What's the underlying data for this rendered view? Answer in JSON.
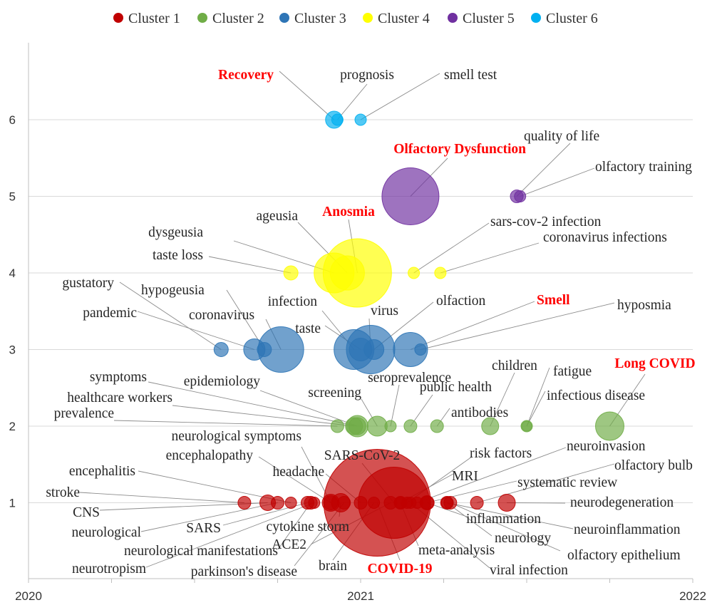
{
  "chart_data": {
    "type": "bubble",
    "title": "",
    "xlabel": "",
    "ylabel": "",
    "xlim": [
      2020,
      2022
    ],
    "ylim": [
      0,
      7
    ],
    "x_ticks": [
      "2020",
      "2021",
      "2022"
    ],
    "y_ticks": [
      "1",
      "2",
      "3",
      "4",
      "5",
      "6"
    ],
    "grid": "horizontal",
    "legend_position": "top",
    "series": [
      {
        "name": "Cluster 1",
        "color": "#c00000",
        "y": 1
      },
      {
        "name": "Cluster 2",
        "color": "#70ad47",
        "y": 2
      },
      {
        "name": "Cluster 3",
        "color": "#2e75b6",
        "y": 3
      },
      {
        "name": "Cluster 4",
        "color": "#ffff00",
        "y": 4
      },
      {
        "name": "Cluster 5",
        "color": "#7030a0",
        "y": 5
      },
      {
        "name": "Cluster 6",
        "color": "#00b0f0",
        "y": 6
      }
    ],
    "bubbles": [
      {
        "label": "Recovery",
        "cluster": 6,
        "x": 2020.92,
        "size": 12,
        "highlight": true
      },
      {
        "label": "prognosis",
        "cluster": 6,
        "x": 2020.93,
        "size": 8
      },
      {
        "label": "smell test",
        "cluster": 6,
        "x": 2021.0,
        "size": 8
      },
      {
        "label": "Olfactory Dysfunction",
        "cluster": 5,
        "x": 2021.15,
        "size": 40,
        "highlight": true
      },
      {
        "label": "quality of life",
        "cluster": 5,
        "x": 2021.47,
        "size": 9
      },
      {
        "label": "olfactory training",
        "cluster": 5,
        "x": 2021.48,
        "size": 8
      },
      {
        "label": "taste loss",
        "cluster": 4,
        "x": 2020.79,
        "size": 10
      },
      {
        "label": "dysgeusia",
        "cluster": 4,
        "x": 2020.92,
        "size": 28
      },
      {
        "label": "ageusia",
        "cluster": 4,
        "x": 2020.96,
        "size": 24
      },
      {
        "label": "Anosmia",
        "cluster": 4,
        "x": 2020.99,
        "size": 48,
        "highlight": true
      },
      {
        "label": "sars-cov-2 infection",
        "cluster": 4,
        "x": 2021.16,
        "size": 8
      },
      {
        "label": "coronavirus infections",
        "cluster": 4,
        "x": 2021.24,
        "size": 8
      },
      {
        "label": "gustatory",
        "cluster": 3,
        "x": 2020.58,
        "size": 10
      },
      {
        "label": "pandemic",
        "cluster": 3,
        "x": 2020.68,
        "size": 15
      },
      {
        "label": "hypogeusia",
        "cluster": 3,
        "x": 2020.71,
        "size": 10
      },
      {
        "label": "coronavirus",
        "cluster": 3,
        "x": 2020.76,
        "size": 32
      },
      {
        "label": "infection",
        "cluster": 3,
        "x": 2020.98,
        "size": 28
      },
      {
        "label": "taste",
        "cluster": 3,
        "x": 2021.0,
        "size": 16
      },
      {
        "label": "virus",
        "cluster": 3,
        "x": 2021.03,
        "size": 34
      },
      {
        "label": "olfaction",
        "cluster": 3,
        "x": 2021.04,
        "size": 14
      },
      {
        "label": "Smell",
        "cluster": 3,
        "x": 2021.15,
        "size": 24,
        "highlight": true
      },
      {
        "label": "hyposmia",
        "cluster": 3,
        "x": 2021.18,
        "size": 8
      },
      {
        "label": "prevalence",
        "cluster": 2,
        "x": 2020.93,
        "size": 9
      },
      {
        "label": "healthcare workers",
        "cluster": 2,
        "x": 2020.98,
        "size": 12
      },
      {
        "label": "symptoms",
        "cluster": 2,
        "x": 2020.99,
        "size": 15
      },
      {
        "label": "epidemiology",
        "cluster": 2,
        "x": 2020.99,
        "size": 12
      },
      {
        "label": "screening",
        "cluster": 2,
        "x": 2021.05,
        "size": 14
      },
      {
        "label": "seroprevalence",
        "cluster": 2,
        "x": 2021.09,
        "size": 8
      },
      {
        "label": "public health",
        "cluster": 2,
        "x": 2021.15,
        "size": 9
      },
      {
        "label": "antibodies",
        "cluster": 2,
        "x": 2021.23,
        "size": 9
      },
      {
        "label": "children",
        "cluster": 2,
        "x": 2021.39,
        "size": 12
      },
      {
        "label": "fatigue",
        "cluster": 2,
        "x": 2021.5,
        "size": 8
      },
      {
        "label": "infectious disease",
        "cluster": 2,
        "x": 2021.5,
        "size": 7
      },
      {
        "label": "Long COVID",
        "cluster": 2,
        "x": 2021.75,
        "size": 20,
        "highlight": true
      },
      {
        "label": "stroke",
        "cluster": 1,
        "x": 2020.65,
        "size": 9
      },
      {
        "label": "CNS",
        "cluster": 1,
        "x": 2020.72,
        "size": 11
      },
      {
        "label": "neurological",
        "cluster": 1,
        "x": 2020.75,
        "size": 9
      },
      {
        "label": "encephalitis",
        "cluster": 1,
        "x": 2020.79,
        "size": 8
      },
      {
        "label": "SARS",
        "cluster": 1,
        "x": 2020.84,
        "size": 9
      },
      {
        "label": "neurological manifestations",
        "cluster": 1,
        "x": 2020.85,
        "size": 9
      },
      {
        "label": "neurotropism",
        "cluster": 1,
        "x": 2020.86,
        "size": 8
      },
      {
        "label": "encephalopathy",
        "cluster": 1,
        "x": 2020.91,
        "size": 12
      },
      {
        "label": "neurological symptoms",
        "cluster": 1,
        "x": 2020.91,
        "size": 10
      },
      {
        "label": "cytokine storm",
        "cluster": 1,
        "x": 2020.94,
        "size": 13
      },
      {
        "label": "parkinson's disease",
        "cluster": 1,
        "x": 2020.95,
        "size": 9
      },
      {
        "label": "headache",
        "cluster": 1,
        "x": 2021.0,
        "size": 9
      },
      {
        "label": "brain",
        "cluster": 1,
        "x": 2021.04,
        "size": 8
      },
      {
        "label": "COVID-19",
        "cluster": 1,
        "x": 2021.05,
        "size": 75,
        "highlight": true
      },
      {
        "label": "SARS-CoV-2",
        "cluster": 1,
        "x": 2021.1,
        "size": 50
      },
      {
        "label": "ACE2",
        "cluster": 1,
        "x": 2021.09,
        "size": 9
      },
      {
        "label": "meta-analysis",
        "cluster": 1,
        "x": 2021.12,
        "size": 9
      },
      {
        "label": "MRI",
        "cluster": 1,
        "x": 2021.12,
        "size": 8
      },
      {
        "label": "risk factors",
        "cluster": 1,
        "x": 2021.14,
        "size": 8
      },
      {
        "label": "viral infection",
        "cluster": 1,
        "x": 2021.15,
        "size": 8
      },
      {
        "label": "neuroinvasion",
        "cluster": 1,
        "x": 2021.17,
        "size": 8
      },
      {
        "label": "systematic review",
        "cluster": 1,
        "x": 2021.2,
        "size": 10
      },
      {
        "label": "inflammation",
        "cluster": 1,
        "x": 2021.2,
        "size": 9
      },
      {
        "label": "neurology",
        "cluster": 1,
        "x": 2021.26,
        "size": 9
      },
      {
        "label": "neuroinflammation",
        "cluster": 1,
        "x": 2021.26,
        "size": 8
      },
      {
        "label": "olfactory epithelium",
        "cluster": 1,
        "x": 2021.27,
        "size": 9
      },
      {
        "label": "olfactory bulb",
        "cluster": 1,
        "x": 2021.35,
        "size": 9
      },
      {
        "label": "neurodegeneration",
        "cluster": 1,
        "x": 2021.44,
        "size": 12
      }
    ]
  }
}
